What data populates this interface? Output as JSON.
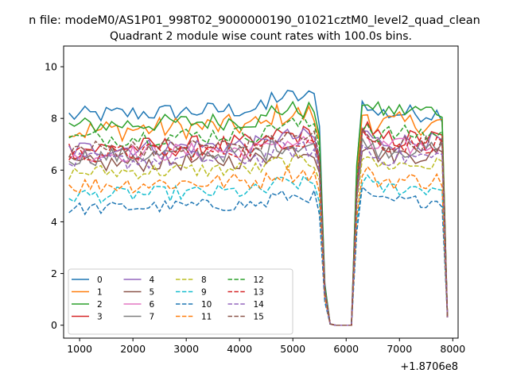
{
  "chart_data": {
    "type": "line",
    "suptitle": "n file: modeM0/AS1P01_998T02_9000000190_01021cztM0_level2_quad_clean",
    "title": "Quadrant 2 module wise count rates with 100.0s bins.",
    "xlabel": "",
    "ylabel": "",
    "x_offset_label": "+1.8706e8",
    "xlim": [
      700,
      8100
    ],
    "ylim": [
      -0.5,
      10.8
    ],
    "xticks": [
      1000,
      2000,
      3000,
      4000,
      5000,
      6000,
      7000,
      8000
    ],
    "yticks": [
      0,
      2,
      4,
      6,
      8,
      10
    ],
    "grid": false,
    "legend_position": "lower-left",
    "legend_columns": 4,
    "segments": [
      {
        "start": 800,
        "step": 100,
        "count": 48
      },
      {
        "start": 5600,
        "step": 100,
        "count": 7,
        "note_free": true
      },
      {
        "start": 6200,
        "step": 100,
        "count": 18
      }
    ],
    "series": [
      {
        "name": "0",
        "color": "#1f77b4",
        "dash": "solid",
        "base": 8.1,
        "noise": 0.35,
        "trend": 0.9,
        "after": 8.2,
        "fall": 1.0
      },
      {
        "name": "1",
        "color": "#ff7f0e",
        "dash": "solid",
        "base": 7.5,
        "noise": 0.45,
        "trend": 0.8,
        "after": 7.8,
        "fall": 0.9
      },
      {
        "name": "2",
        "color": "#2ca02c",
        "dash": "solid",
        "base": 7.7,
        "noise": 0.35,
        "trend": 0.8,
        "after": 8.3,
        "fall": 1.0
      },
      {
        "name": "3",
        "color": "#d62728",
        "dash": "solid",
        "base": 6.8,
        "noise": 0.4,
        "trend": 0.7,
        "after": 7.2,
        "fall": 0.95
      },
      {
        "name": "4",
        "color": "#9467bd",
        "dash": "solid",
        "base": 6.8,
        "noise": 0.35,
        "trend": 0.6,
        "after": 7.1,
        "fall": 0.9
      },
      {
        "name": "5",
        "color": "#8c564b",
        "dash": "solid",
        "base": 6.2,
        "noise": 0.35,
        "trend": 0.7,
        "after": 6.6,
        "fall": 0.9
      },
      {
        "name": "6",
        "color": "#e377c2",
        "dash": "solid",
        "base": 6.6,
        "noise": 0.35,
        "trend": 0.6,
        "after": 6.9,
        "fall": 0.9
      },
      {
        "name": "7",
        "color": "#7f7f7f",
        "dash": "solid",
        "base": 6.5,
        "noise": 0.35,
        "trend": 0.6,
        "after": 6.8,
        "fall": 0.9
      },
      {
        "name": "8",
        "color": "#bcbd22",
        "dash": "dashed",
        "base": 5.9,
        "noise": 0.3,
        "trend": 0.5,
        "after": 6.2,
        "fall": 0.85
      },
      {
        "name": "9",
        "color": "#17becf",
        "dash": "dashed",
        "base": 5.0,
        "noise": 0.3,
        "trend": 0.6,
        "after": 5.3,
        "fall": 0.8
      },
      {
        "name": "10",
        "color": "#1f77b4",
        "dash": "dashed",
        "base": 4.5,
        "noise": 0.25,
        "trend": 0.6,
        "after": 4.8,
        "fall": 0.8
      },
      {
        "name": "11",
        "color": "#ff7f0e",
        "dash": "dashed",
        "base": 5.4,
        "noise": 0.35,
        "trend": 0.6,
        "after": 5.6,
        "fall": 0.8
      },
      {
        "name": "12",
        "color": "#2ca02c",
        "dash": "dashed",
        "base": 7.2,
        "noise": 0.35,
        "trend": 0.7,
        "after": 7.4,
        "fall": 0.95
      },
      {
        "name": "13",
        "color": "#d62728",
        "dash": "dashed",
        "base": 6.6,
        "noise": 0.35,
        "trend": 0.7,
        "after": 7.0,
        "fall": 0.9
      },
      {
        "name": "14",
        "color": "#9467bd",
        "dash": "dashed",
        "base": 6.3,
        "noise": 0.35,
        "trend": 0.6,
        "after": 6.5,
        "fall": 0.9
      },
      {
        "name": "15",
        "color": "#8c564b",
        "dash": "dashed",
        "base": 6.8,
        "noise": 0.35,
        "trend": 0.6,
        "after": 7.0,
        "fall": 0.9
      }
    ]
  }
}
